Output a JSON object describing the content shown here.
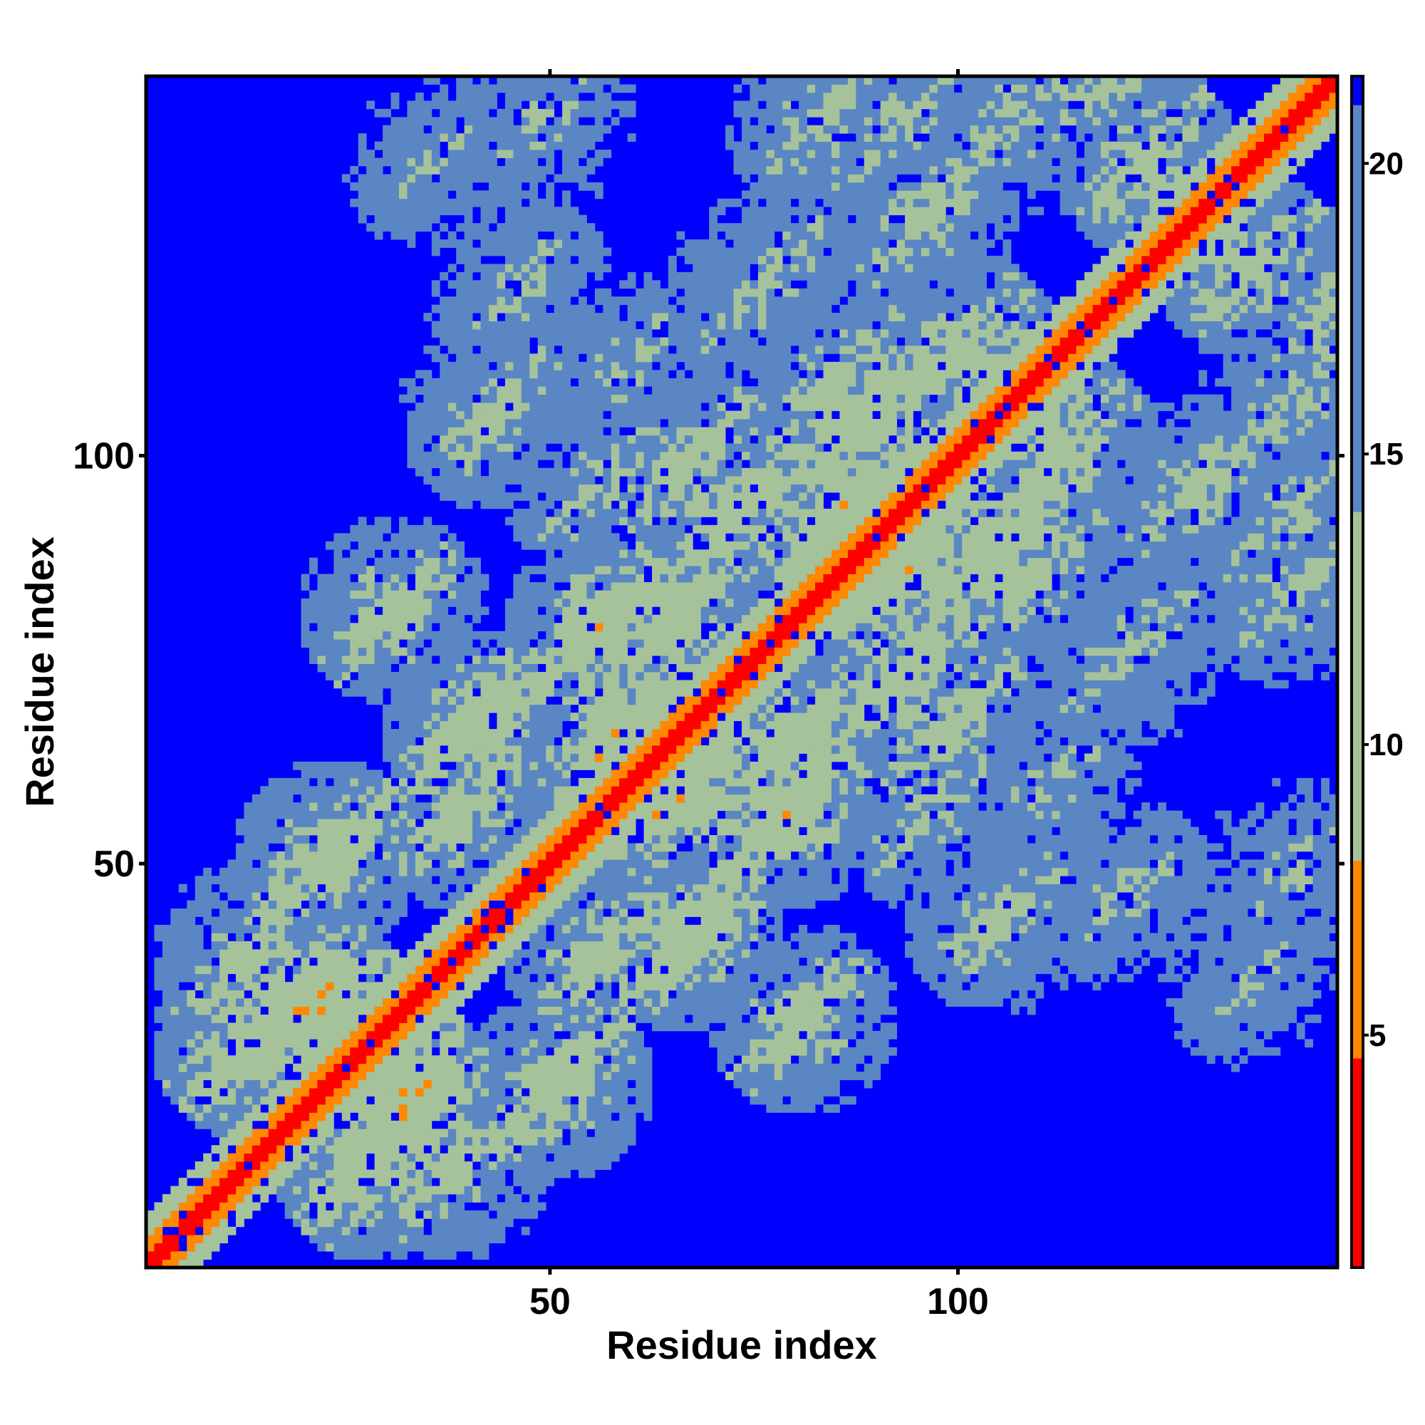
{
  "chart_data": {
    "type": "heatmap",
    "title": "",
    "xlabel": "Residue index",
    "ylabel": "Residue index",
    "n_residues": 146,
    "x_range": [
      1,
      146
    ],
    "y_range": [
      1,
      146
    ],
    "x_ticks": [
      50,
      100
    ],
    "y_ticks": [
      50,
      100
    ],
    "colorbar": {
      "ticks": [
        5,
        10,
        15,
        20
      ],
      "range": [
        1,
        21.5
      ],
      "cutoff": 21
    },
    "colors": {
      "background": "#0000ff",
      "very_close": "#ff0000",
      "close": "#ff8800",
      "mid": "#a6c29a",
      "far": "#5a86c4"
    },
    "contact_bands": [
      {
        "i": 12,
        "j": 27,
        "d": 9.0
      },
      {
        "i": 20,
        "j": 32,
        "d": 8.5
      },
      {
        "i": 12,
        "j": 38,
        "d": 10.5
      },
      {
        "i": 22,
        "j": 50,
        "d": 9.5
      },
      {
        "i": 38,
        "j": 55,
        "d": 10.5
      },
      {
        "i": 40,
        "j": 66,
        "d": 9.0
      },
      {
        "i": 30,
        "j": 80,
        "d": 10.0
      },
      {
        "i": 42,
        "j": 104,
        "d": 11.0
      },
      {
        "i": 45,
        "j": 120,
        "d": 12.0
      },
      {
        "i": 55,
        "j": 78,
        "d": 9.0
      },
      {
        "i": 58,
        "j": 65,
        "d": 8.5
      },
      {
        "i": 65,
        "j": 79,
        "d": 10.0
      },
      {
        "i": 55,
        "j": 95,
        "d": 11.5
      },
      {
        "i": 58,
        "j": 110,
        "d": 12.0
      },
      {
        "i": 72,
        "j": 92,
        "d": 9.5
      },
      {
        "i": 66,
        "j": 98,
        "d": 10.5
      },
      {
        "i": 85,
        "j": 92,
        "d": 8.5
      },
      {
        "i": 88,
        "j": 104,
        "d": 9.0
      },
      {
        "i": 84,
        "j": 108,
        "d": 10.5
      },
      {
        "i": 75,
        "j": 120,
        "d": 11.5
      },
      {
        "i": 100,
        "j": 112,
        "d": 10.0
      },
      {
        "i": 95,
        "j": 128,
        "d": 11.0
      },
      {
        "i": 105,
        "j": 140,
        "d": 11.5
      },
      {
        "i": 35,
        "j": 135,
        "d": 13.0
      },
      {
        "i": 48,
        "j": 140,
        "d": 12.5
      },
      {
        "i": 82,
        "j": 140,
        "d": 11.5
      },
      {
        "i": 92,
        "j": 140,
        "d": 11.5
      },
      {
        "i": 122,
        "j": 135,
        "d": 10.0
      },
      {
        "i": 118,
        "j": 145,
        "d": 11.0
      }
    ]
  }
}
